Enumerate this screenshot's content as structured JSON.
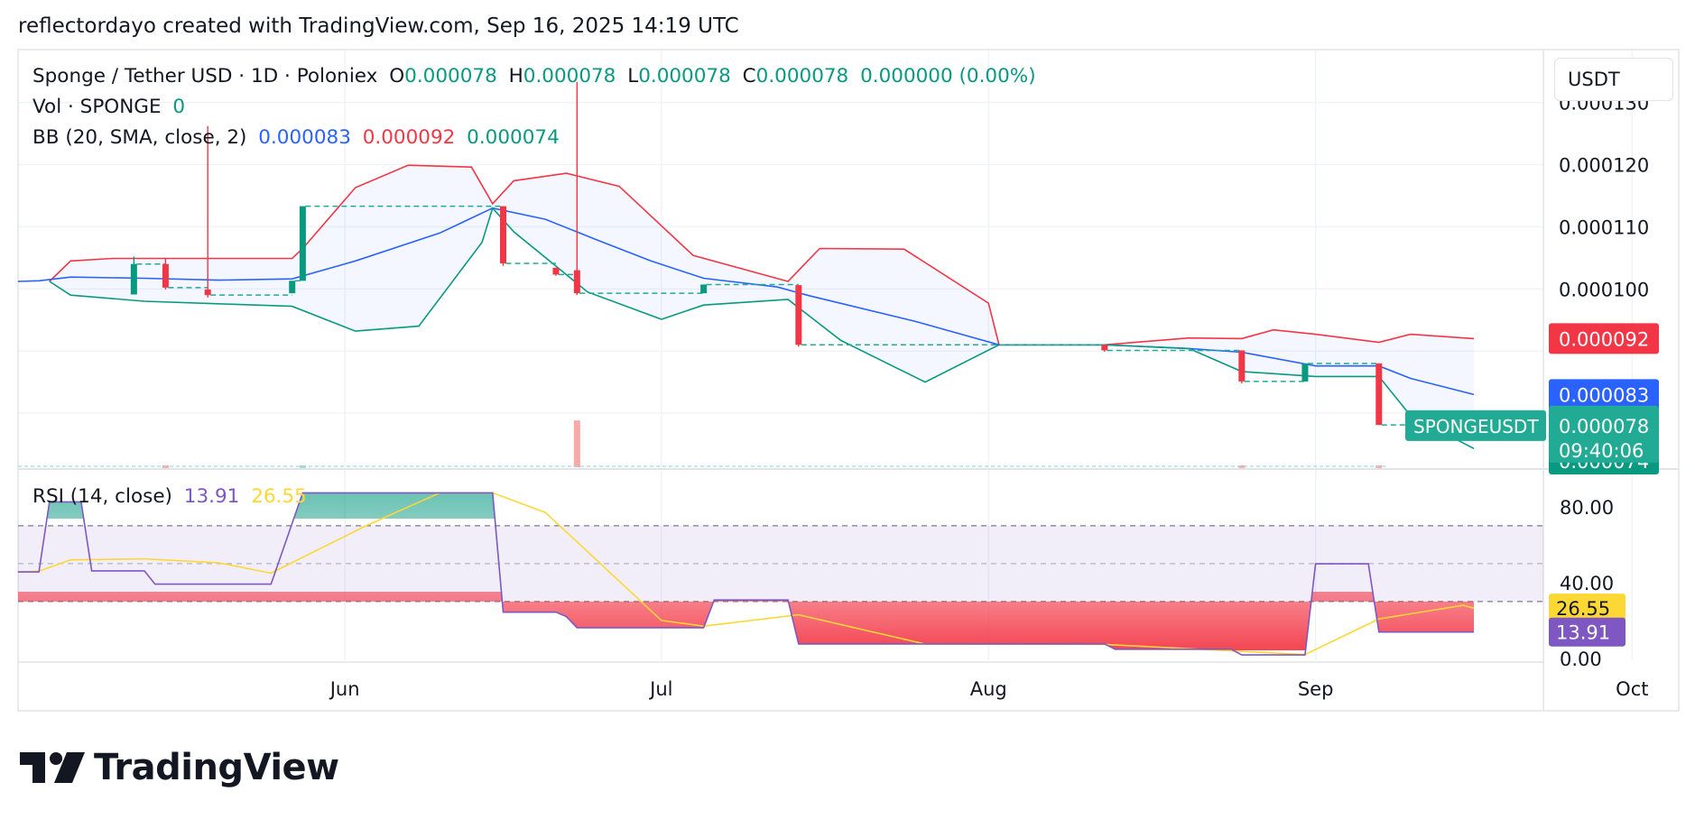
{
  "header": {
    "attribution": "reflectordayo created with TradingView.com, Sep 16, 2025 14:19 UTC"
  },
  "legend": {
    "symbol": "Sponge / Tether USD · 1D · Poloniex",
    "o_label": "O",
    "o_value": "0.000078",
    "h_label": "H",
    "h_value": "0.000078",
    "l_label": "L",
    "l_value": "0.000078",
    "c_label": "C",
    "c_value": "0.000078",
    "change": "0.000000 (0.00%)",
    "vol_label": "Vol · SPONGE",
    "vol_value": "0",
    "bb_label": "BB (20, SMA, close, 2)",
    "bb_basis": "0.000083",
    "bb_upper": "0.000092",
    "bb_lower": "0.000074",
    "rsi_label": "RSI (14, close)",
    "rsi_value": "13.91",
    "rsi_ma": "26.55"
  },
  "currency_button": "USDT",
  "footer": {
    "logo_text": "TradingView"
  },
  "colors": {
    "up": "#089981",
    "down": "#f23645",
    "basis": "#2962ff",
    "upper": "#f23645",
    "lower": "#089981",
    "rsi": "#7e57c2",
    "rsi_ma": "#fdd835"
  },
  "chart_data": [
    {
      "type": "candlestick",
      "title": "Sponge / Tether USD · 1D · Poloniex",
      "x_ticks": [
        "Jun",
        "Jul",
        "Aug",
        "Sep",
        "Oct"
      ],
      "y_ticks": [
        "0.000130",
        "0.000120",
        "0.000110",
        "0.000100"
      ],
      "ylim": [
        7.13e-05,
        0.0001385
      ],
      "last_price_labels": [
        {
          "name": "BB upper",
          "value": "0.000092",
          "color": "#f23645"
        },
        {
          "name": "BB basis",
          "value": "0.000083",
          "color": "#2962ff"
        },
        {
          "name": "SPONGEUSDT",
          "value": "0.000078",
          "countdown": "09:40:06",
          "color": "#22ab94"
        },
        {
          "name": "BB lower",
          "value": "0.000074",
          "color": "#089981"
        }
      ],
      "candles": [
        {
          "date": "2025-05-12",
          "open": 9.91e-05,
          "high": 0.0001052,
          "low": 9.91e-05,
          "close": 0.000104
        },
        {
          "date": "2025-05-15",
          "open": 0.000104,
          "high": 0.000105,
          "low": 9.99e-05,
          "close": 0.0001002
        },
        {
          "date": "2025-05-19",
          "open": 9.99e-05,
          "high": 0.0001262,
          "low": 9.86e-05,
          "close": 9.9e-05
        },
        {
          "date": "2025-05-27",
          "open": 9.93e-05,
          "high": 0.0001013,
          "low": 9.93e-05,
          "close": 0.0001013
        },
        {
          "date": "2025-05-28",
          "open": 0.0001013,
          "high": 0.0001133,
          "low": 0.0001013,
          "close": 0.0001133
        },
        {
          "date": "2025-06-16",
          "open": 0.0001133,
          "high": 0.0001133,
          "low": 0.0001037,
          "close": 0.0001041
        },
        {
          "date": "2025-06-21",
          "open": 0.0001034,
          "high": 0.0001034,
          "low": 0.0001021,
          "close": 0.0001023
        },
        {
          "date": "2025-06-23",
          "open": 0.000103,
          "high": 0.0001333,
          "low": 9.9e-05,
          "close": 9.93e-05
        },
        {
          "date": "2025-07-05",
          "open": 9.93e-05,
          "high": 0.0001007,
          "low": 9.93e-05,
          "close": 0.0001007
        },
        {
          "date": "2025-07-14",
          "open": 0.0001006,
          "high": 0.0001006,
          "low": 9.07e-05,
          "close": 9.1e-05
        },
        {
          "date": "2025-08-12",
          "open": 9.1e-05,
          "high": 9.1e-05,
          "low": 8.99e-05,
          "close": 9.01e-05
        },
        {
          "date": "2025-08-25",
          "open": 9.01e-05,
          "high": 9.01e-05,
          "low": 8.48e-05,
          "close": 8.51e-05
        },
        {
          "date": "2025-08-31",
          "open": 8.51e-05,
          "high": 8.8e-05,
          "low": 8.51e-05,
          "close": 8.8e-05
        },
        {
          "date": "2025-09-07",
          "open": 8.8e-05,
          "high": 8.8e-05,
          "low": 7.81e-05,
          "close": 7.81e-05
        }
      ],
      "bollinger": {
        "basis": [
          [
            "2025-05-01",
            0.0001012
          ],
          [
            "2025-05-03",
            0.0001013
          ],
          [
            "2025-05-06",
            0.0001019
          ],
          [
            "2025-05-13",
            0.0001017
          ],
          [
            "2025-05-20",
            0.0001014
          ],
          [
            "2025-05-27",
            0.0001016
          ],
          [
            "2025-06-02",
            0.0001045
          ],
          [
            "2025-06-10",
            0.000109
          ],
          [
            "2025-06-15",
            0.000113
          ],
          [
            "2025-06-20",
            0.0001112
          ],
          [
            "2025-06-25",
            0.0001078
          ],
          [
            "2025-06-30",
            0.0001045
          ],
          [
            "2025-07-05",
            0.0001017
          ],
          [
            "2025-07-12",
            0.0001003
          ],
          [
            "2025-07-15",
            9.89e-05
          ],
          [
            "2025-07-25",
            9.48e-05
          ],
          [
            "2025-08-02",
            9.1e-05
          ],
          [
            "2025-08-12",
            9.1e-05
          ],
          [
            "2025-08-20",
            9.04e-05
          ],
          [
            "2025-08-25",
            8.98e-05
          ],
          [
            "2025-09-01",
            8.76e-05
          ],
          [
            "2025-09-07",
            8.76e-05
          ],
          [
            "2025-09-10",
            8.56e-05
          ],
          [
            "2025-09-16",
            8.3e-05
          ]
        ],
        "upper": [
          [
            "2025-05-04",
            0.0001012
          ],
          [
            "2025-05-06",
            0.0001045
          ],
          [
            "2025-05-10",
            0.0001049
          ],
          [
            "2025-05-20",
            0.0001049
          ],
          [
            "2025-05-27",
            0.0001049
          ],
          [
            "2025-05-28",
            0.0001065
          ],
          [
            "2025-06-02",
            0.0001163
          ],
          [
            "2025-06-07",
            0.0001199
          ],
          [
            "2025-06-13",
            0.0001196
          ],
          [
            "2025-06-15",
            0.0001137
          ],
          [
            "2025-06-17",
            0.0001174
          ],
          [
            "2025-06-22",
            0.0001186
          ],
          [
            "2025-06-27",
            0.0001165
          ],
          [
            "2025-07-04",
            0.0001054
          ],
          [
            "2025-07-13",
            0.0001012
          ],
          [
            "2025-07-16",
            0.0001065
          ],
          [
            "2025-07-24",
            0.0001064
          ],
          [
            "2025-08-01",
            9.77e-05
          ],
          [
            "2025-08-02",
            9.1e-05
          ],
          [
            "2025-08-12",
            9.1e-05
          ],
          [
            "2025-08-20",
            9.21e-05
          ],
          [
            "2025-08-25",
            9.2e-05
          ],
          [
            "2025-08-28",
            9.34e-05
          ],
          [
            "2025-09-01",
            9.27e-05
          ],
          [
            "2025-09-07",
            9.14e-05
          ],
          [
            "2025-09-10",
            9.27e-05
          ],
          [
            "2025-09-16",
            9.2e-05
          ]
        ],
        "lower": [
          [
            "2025-05-04",
            0.0001012
          ],
          [
            "2025-05-06",
            9.9e-05
          ],
          [
            "2025-05-13",
            9.8e-05
          ],
          [
            "2025-05-20",
            9.76e-05
          ],
          [
            "2025-05-27",
            9.72e-05
          ],
          [
            "2025-06-02",
            9.32e-05
          ],
          [
            "2025-06-08",
            9.4e-05
          ],
          [
            "2025-06-14",
            0.0001075
          ],
          [
            "2025-06-15",
            0.000113
          ],
          [
            "2025-06-17",
            0.0001092
          ],
          [
            "2025-06-24",
            9.95e-05
          ],
          [
            "2025-07-01",
            9.51e-05
          ],
          [
            "2025-07-05",
            9.74e-05
          ],
          [
            "2025-07-13",
            9.83e-05
          ],
          [
            "2025-07-18",
            9.17e-05
          ],
          [
            "2025-07-26",
            8.5e-05
          ],
          [
            "2025-08-02",
            9.1e-05
          ],
          [
            "2025-08-12",
            9.1e-05
          ],
          [
            "2025-08-20",
            9.04e-05
          ],
          [
            "2025-08-25",
            8.67e-05
          ],
          [
            "2025-09-01",
            8.59e-05
          ],
          [
            "2025-09-07",
            8.59e-05
          ],
          [
            "2025-09-10",
            7.96e-05
          ],
          [
            "2025-09-16",
            7.43e-05
          ]
        ]
      },
      "volume": [
        {
          "date": "2025-05-15",
          "value": 0.004,
          "color": "#f7a9a7"
        },
        {
          "date": "2025-05-28",
          "value": 0.004,
          "color": "#a4dbd1"
        },
        {
          "date": "2025-06-23",
          "value": 0.1,
          "color": "#f7a9a7"
        },
        {
          "date": "2025-08-25",
          "value": 0.004,
          "color": "#f7a9a7"
        },
        {
          "date": "2025-09-07",
          "value": 0.004,
          "color": "#f7a9a7"
        }
      ]
    },
    {
      "type": "line",
      "title": "RSI (14, close)",
      "y_ticks": [
        "80.00",
        "40.00",
        "0.00"
      ],
      "ylim": [
        -1,
        99
      ],
      "bands": {
        "upper": 70,
        "middle": 50,
        "lower": 30
      },
      "last_value_labels": [
        {
          "name": "RSI-based MA",
          "value": "26.55",
          "color": "#fdd835"
        },
        {
          "name": "RSI",
          "value": "13.91",
          "color": "#7e57c2"
        }
      ],
      "series": [
        {
          "name": "RSI",
          "values": [
            [
              "2025-05-01",
              45.6
            ],
            [
              "2025-05-03",
              45.6
            ],
            [
              "2025-05-04",
              82.6
            ],
            [
              "2025-05-07",
              82.6
            ],
            [
              "2025-05-08",
              46.2
            ],
            [
              "2025-05-13",
              46.2
            ],
            [
              "2025-05-14",
              39.2
            ],
            [
              "2025-05-25",
              39.2
            ],
            [
              "2025-05-28",
              87.4
            ],
            [
              "2025-06-15",
              87.4
            ],
            [
              "2025-06-16",
              24.4
            ],
            [
              "2025-06-21",
              24.4
            ],
            [
              "2025-06-22",
              22.0
            ],
            [
              "2025-06-23",
              16.2
            ],
            [
              "2025-07-05",
              16.2
            ],
            [
              "2025-07-06",
              30.8
            ],
            [
              "2025-07-13",
              30.8
            ],
            [
              "2025-07-14",
              7.6
            ],
            [
              "2025-08-12",
              7.6
            ],
            [
              "2025-08-13",
              4.8
            ],
            [
              "2025-08-24",
              4.8
            ],
            [
              "2025-08-25",
              1.8
            ],
            [
              "2025-08-31",
              1.8
            ],
            [
              "2025-09-01",
              49.9
            ],
            [
              "2025-09-06",
              49.9
            ],
            [
              "2025-09-07",
              13.9
            ],
            [
              "2025-09-16",
              13.9
            ]
          ]
        },
        {
          "name": "RSI-based MA",
          "values": [
            [
              "2025-05-01",
              45.6
            ],
            [
              "2025-05-03",
              46.0
            ],
            [
              "2025-05-06",
              52.0
            ],
            [
              "2025-05-13",
              52.5
            ],
            [
              "2025-05-20",
              50.5
            ],
            [
              "2025-05-25",
              45.0
            ],
            [
              "2025-06-03",
              70.0
            ],
            [
              "2025-06-10",
              87.4
            ],
            [
              "2025-06-15",
              87.4
            ],
            [
              "2025-06-20",
              77.0
            ],
            [
              "2025-07-01",
              20.0
            ],
            [
              "2025-07-05",
              17.0
            ],
            [
              "2025-07-14",
              23.0
            ],
            [
              "2025-07-26",
              7.5
            ],
            [
              "2025-08-12",
              7.4
            ],
            [
              "2025-08-31",
              2.0
            ],
            [
              "2025-09-07",
              20.8
            ],
            [
              "2025-09-10",
              23.5
            ],
            [
              "2025-09-15",
              28.0
            ],
            [
              "2025-09-16",
              26.5
            ]
          ]
        }
      ]
    }
  ]
}
